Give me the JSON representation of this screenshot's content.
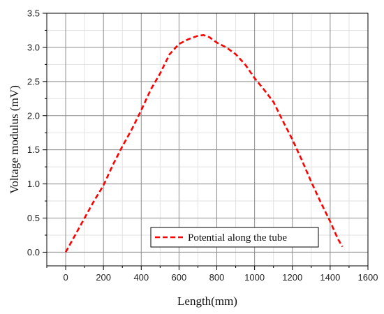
{
  "chart_data": {
    "type": "line",
    "title": "",
    "xlabel": "Length(mm)",
    "ylabel": "Voltage modulus (mV)",
    "xlim": [
      -100,
      1600
    ],
    "ylim": [
      -0.2,
      3.5
    ],
    "x_ticks": [
      0,
      200,
      400,
      600,
      800,
      1000,
      1200,
      1400,
      1600
    ],
    "y_ticks": [
      0.0,
      0.5,
      1.0,
      1.5,
      2.0,
      2.5,
      3.0,
      3.5
    ],
    "x_tick_labels": [
      "0",
      "200",
      "400",
      "600",
      "800",
      "1000",
      "1200",
      "1400",
      "1600"
    ],
    "y_tick_labels": [
      "0.0",
      "0.5",
      "1.0",
      "1.5",
      "2.0",
      "2.5",
      "3.0",
      "3.5"
    ],
    "grid": true,
    "legend_position": "bottom-center",
    "series": [
      {
        "name": "Potential along the tube",
        "color": "#ff0000",
        "line_style": "dashed",
        "x": [
          0,
          50,
          100,
          150,
          200,
          250,
          300,
          350,
          400,
          450,
          500,
          550,
          600,
          650,
          700,
          730,
          760,
          800,
          850,
          900,
          950,
          1000,
          1050,
          1100,
          1150,
          1200,
          1250,
          1300,
          1350,
          1400,
          1440,
          1465
        ],
        "y": [
          0.0,
          0.25,
          0.5,
          0.75,
          0.98,
          1.28,
          1.55,
          1.8,
          2.08,
          2.38,
          2.62,
          2.9,
          3.05,
          3.12,
          3.17,
          3.18,
          3.15,
          3.07,
          3.0,
          2.9,
          2.75,
          2.55,
          2.38,
          2.2,
          1.92,
          1.65,
          1.35,
          1.03,
          0.73,
          0.45,
          0.2,
          0.08
        ]
      }
    ]
  }
}
